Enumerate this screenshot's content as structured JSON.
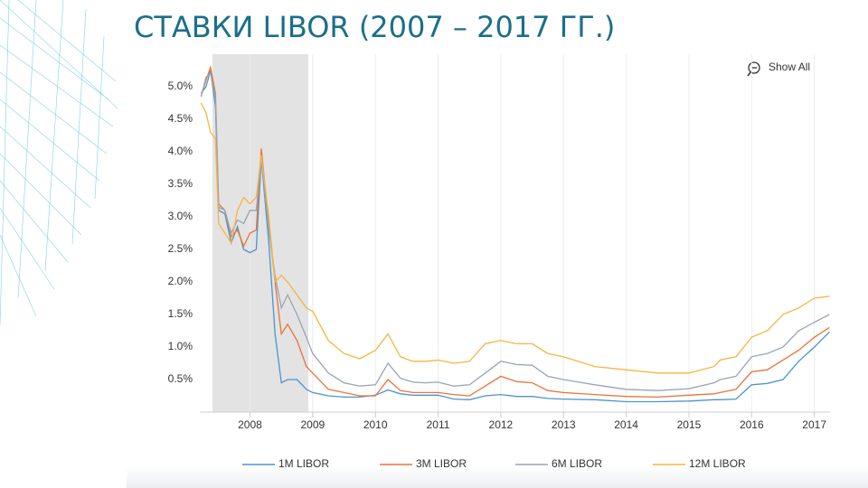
{
  "chart_data": {
    "type": "line",
    "title": "СТАВКИ LIBOR (2007 – 2017 ГГ.)",
    "reset_button": "Show All",
    "x": [
      2007.22,
      2007.3,
      2007.37,
      2007.45,
      2007.5,
      2007.6,
      2007.7,
      2007.8,
      2007.9,
      2008.0,
      2008.1,
      2008.18,
      2008.3,
      2008.4,
      2008.5,
      2008.6,
      2008.75,
      2008.9,
      2009.0,
      2009.25,
      2009.5,
      2009.75,
      2010.0,
      2010.2,
      2010.4,
      2010.6,
      2010.8,
      2011.0,
      2011.25,
      2011.5,
      2011.75,
      2012.0,
      2012.25,
      2012.5,
      2012.75,
      2013.0,
      2013.5,
      2014.0,
      2014.5,
      2015.0,
      2015.4,
      2015.5,
      2015.75,
      2016.0,
      2016.25,
      2016.5,
      2016.75,
      2017.0,
      2017.24
    ],
    "series": [
      {
        "name": "1M LIBOR",
        "color": "#4f93cc",
        "values": [
          4.9,
          5.0,
          5.25,
          4.7,
          3.1,
          3.05,
          2.6,
          2.85,
          2.5,
          2.45,
          2.5,
          3.9,
          2.6,
          1.2,
          0.45,
          0.5,
          0.5,
          0.35,
          0.3,
          0.25,
          0.23,
          0.23,
          0.26,
          0.34,
          0.28,
          0.26,
          0.26,
          0.26,
          0.2,
          0.19,
          0.25,
          0.27,
          0.24,
          0.24,
          0.21,
          0.2,
          0.19,
          0.16,
          0.16,
          0.17,
          0.19,
          0.19,
          0.2,
          0.42,
          0.44,
          0.5,
          0.78,
          1.0,
          1.23
        ]
      },
      {
        "name": "3M LIBOR",
        "color": "#e8743b",
        "values": [
          4.85,
          5.1,
          5.3,
          4.9,
          3.2,
          3.1,
          2.7,
          2.8,
          2.55,
          2.75,
          2.8,
          4.05,
          2.9,
          2.0,
          1.2,
          1.35,
          1.1,
          0.7,
          0.6,
          0.35,
          0.3,
          0.25,
          0.25,
          0.5,
          0.33,
          0.3,
          0.3,
          0.3,
          0.27,
          0.25,
          0.4,
          0.55,
          0.47,
          0.45,
          0.33,
          0.3,
          0.27,
          0.24,
          0.23,
          0.26,
          0.28,
          0.3,
          0.35,
          0.62,
          0.65,
          0.8,
          0.95,
          1.15,
          1.3
        ]
      },
      {
        "name": "6M LIBOR",
        "color": "#9aa3b5",
        "values": [
          4.85,
          5.15,
          5.2,
          4.85,
          3.15,
          3.1,
          2.75,
          2.95,
          2.9,
          3.1,
          3.1,
          3.9,
          2.8,
          2.1,
          1.6,
          1.8,
          1.5,
          1.15,
          0.9,
          0.6,
          0.45,
          0.4,
          0.42,
          0.75,
          0.52,
          0.46,
          0.45,
          0.46,
          0.4,
          0.42,
          0.6,
          0.78,
          0.73,
          0.72,
          0.55,
          0.5,
          0.42,
          0.35,
          0.33,
          0.36,
          0.45,
          0.5,
          0.55,
          0.85,
          0.9,
          1.0,
          1.25,
          1.38,
          1.5
        ]
      },
      {
        "name": "12M LIBOR",
        "color": "#f4b63f",
        "values": [
          4.75,
          4.6,
          4.3,
          4.2,
          2.9,
          2.75,
          2.6,
          3.1,
          3.3,
          3.2,
          3.3,
          3.95,
          3.0,
          2.0,
          2.1,
          2.0,
          1.8,
          1.6,
          1.55,
          1.1,
          0.9,
          0.82,
          0.95,
          1.2,
          0.85,
          0.78,
          0.78,
          0.8,
          0.75,
          0.78,
          1.05,
          1.1,
          1.05,
          1.05,
          0.9,
          0.85,
          0.7,
          0.65,
          0.6,
          0.6,
          0.7,
          0.8,
          0.85,
          1.15,
          1.25,
          1.5,
          1.6,
          1.75,
          1.78
        ]
      }
    ],
    "xlim": [
      2007.2,
      2017.25
    ],
    "ylim": [
      0,
      5.5
    ],
    "xticks": [
      2008,
      2009,
      2010,
      2011,
      2012,
      2013,
      2014,
      2015,
      2016,
      2017
    ],
    "yticks": [
      {
        "value": 0.5,
        "label": "0.5%"
      },
      {
        "value": 1.0,
        "label": "1.0%"
      },
      {
        "value": 1.5,
        "label": "1.5%"
      },
      {
        "value": 2.0,
        "label": "2.0%"
      },
      {
        "value": 2.5,
        "label": "2.5%"
      },
      {
        "value": 3.0,
        "label": "3.0%"
      },
      {
        "value": 3.5,
        "label": "3.5%"
      },
      {
        "value": 4.0,
        "label": "4.0%"
      },
      {
        "value": 4.5,
        "label": "4.5%"
      },
      {
        "value": 5.0,
        "label": "5.0%"
      }
    ],
    "recession": [
      2007.4,
      2008.93
    ],
    "recession_color": "#e3e3e3",
    "grid": "x",
    "legend": "bottom"
  }
}
